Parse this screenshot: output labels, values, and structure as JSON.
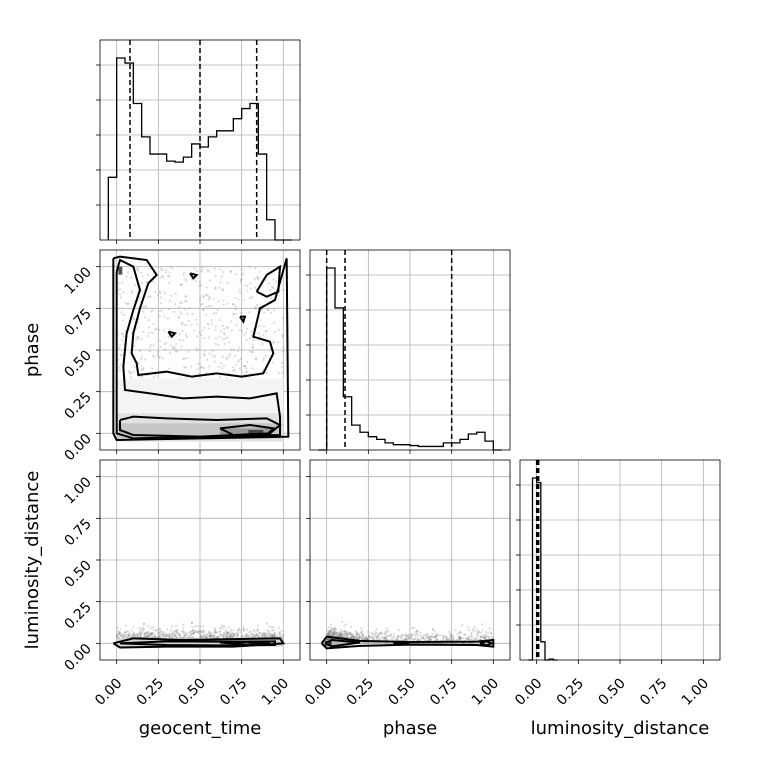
{
  "chart_data": {
    "type": "corner",
    "parameters": [
      "geocent_time",
      "phase",
      "luminosity_distance"
    ],
    "ticks": [
      0.0,
      0.25,
      0.5,
      0.75,
      1.0
    ],
    "tick_labels": [
      "0.00",
      "0.25",
      "0.50",
      "0.75",
      "1.00"
    ],
    "grid": true,
    "panels": [
      {
        "row": 0,
        "col": 0,
        "type": "histogram",
        "param": "geocent_time",
        "xlim": [
          -0.1,
          1.1
        ],
        "bin_edges": [
          -0.05,
          0.0,
          0.05,
          0.1,
          0.15,
          0.2,
          0.25,
          0.3,
          0.35,
          0.4,
          0.45,
          0.5,
          0.55,
          0.6,
          0.65,
          0.7,
          0.75,
          0.8,
          0.85,
          0.9,
          0.95,
          1.0,
          1.05
        ],
        "counts": [
          62,
          180,
          175,
          135,
          102,
          85,
          85,
          78,
          77,
          82,
          95,
          92,
          102,
          108,
          108,
          120,
          130,
          135,
          85,
          20,
          0,
          0
        ],
        "quantiles": [
          0.08,
          0.5,
          0.84
        ]
      },
      {
        "row": 1,
        "col": 0,
        "type": "contour",
        "x_param": "geocent_time",
        "y_param": "phase",
        "xlim": [
          -0.1,
          1.1
        ],
        "ylim": [
          -0.1,
          1.1
        ]
      },
      {
        "row": 1,
        "col": 1,
        "type": "histogram",
        "param": "phase",
        "xlim": [
          -0.1,
          1.1
        ],
        "bin_edges": [
          -0.05,
          0.0,
          0.05,
          0.1,
          0.15,
          0.2,
          0.25,
          0.3,
          0.35,
          0.4,
          0.45,
          0.5,
          0.55,
          0.6,
          0.65,
          0.7,
          0.75,
          0.8,
          0.85,
          0.9,
          0.95,
          1.0,
          1.05
        ],
        "counts": [
          0,
          205,
          160,
          60,
          28,
          20,
          15,
          12,
          8,
          6,
          6,
          5,
          4,
          4,
          4,
          8,
          8,
          12,
          18,
          20,
          10,
          0
        ],
        "quantiles": [
          0.0,
          0.11,
          0.75
        ]
      },
      {
        "row": 2,
        "col": 0,
        "type": "contour",
        "x_param": "geocent_time",
        "y_param": "luminosity_distance",
        "xlim": [
          -0.1,
          1.1
        ],
        "ylim": [
          -0.1,
          1.1
        ]
      },
      {
        "row": 2,
        "col": 1,
        "type": "contour",
        "x_param": "phase",
        "y_param": "luminosity_distance",
        "xlim": [
          -0.1,
          1.1
        ],
        "ylim": [
          -0.1,
          1.1
        ]
      },
      {
        "row": 2,
        "col": 2,
        "type": "histogram",
        "param": "luminosity_distance",
        "xlim": [
          -0.1,
          1.1
        ],
        "bin_edges": [
          -0.05,
          -0.025,
          0.0,
          0.025,
          0.05,
          0.075,
          0.1,
          0.125
        ],
        "counts": [
          0,
          200,
          195,
          20,
          0,
          1,
          0
        ],
        "quantiles": [
          0.0,
          0.005,
          0.012
        ]
      }
    ]
  }
}
